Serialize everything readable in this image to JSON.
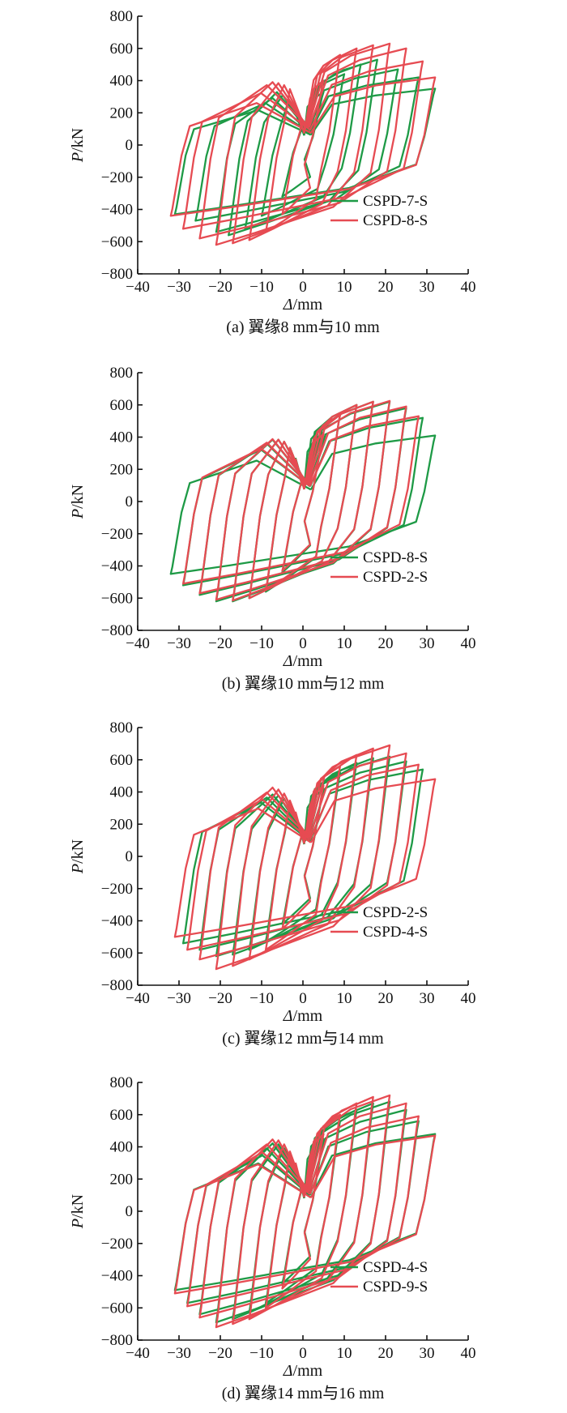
{
  "colors": {
    "green": "#1e9a46",
    "red": "#e64b52"
  },
  "chart_data": [
    {
      "type": "line",
      "xlabel": "Δ/mm",
      "ylabel": "P/kN",
      "xlim": [
        -40,
        40
      ],
      "ylim": [
        -800,
        800
      ],
      "xticks": [
        "−40",
        "−30",
        "−20",
        "−10",
        "0",
        "10",
        "20",
        "30",
        "40"
      ],
      "yticks": [
        "800",
        "600",
        "400",
        "200",
        "0",
        "−200",
        "−400",
        "−600",
        "−800"
      ],
      "caption": "(a) 翼缘8 mm与10 mm",
      "series": [
        {
          "name": "CSPD-7-S",
          "color": "green",
          "peaks_pos": [
            [
              5,
              330
            ],
            [
              10,
              440
            ],
            [
              14,
              500
            ],
            [
              18,
              530
            ],
            [
              23,
              470
            ],
            [
              28,
              420
            ],
            [
              32,
              350
            ]
          ],
          "peaks_neg": [
            [
              -5,
              -320
            ],
            [
              -10,
              -440
            ],
            [
              -14,
              -520
            ],
            [
              -18,
              -560
            ],
            [
              -21,
              -540
            ],
            [
              -26,
              -470
            ],
            [
              -31,
              -430
            ]
          ]
        },
        {
          "name": "CSPD-8-S",
          "color": "red",
          "peaks_pos": [
            [
              5,
              400
            ],
            [
              9,
              560
            ],
            [
              13,
              600
            ],
            [
              17,
              620
            ],
            [
              21,
              630
            ],
            [
              25,
              600
            ],
            [
              29,
              520
            ],
            [
              32,
              420
            ]
          ],
          "peaks_neg": [
            [
              -5,
              -430
            ],
            [
              -9,
              -540
            ],
            [
              -13,
              -590
            ],
            [
              -17,
              -610
            ],
            [
              -21,
              -620
            ],
            [
              -25,
              -580
            ],
            [
              -29,
              -520
            ],
            [
              -32,
              -440
            ]
          ]
        }
      ]
    },
    {
      "type": "line",
      "xlabel": "Δ/mm",
      "ylabel": "P/kN",
      "xlim": [
        -40,
        40
      ],
      "ylim": [
        -800,
        800
      ],
      "xticks": [
        "−40",
        "−30",
        "−20",
        "−10",
        "0",
        "10",
        "20",
        "30",
        "40"
      ],
      "yticks": [
        "800",
        "600",
        "400",
        "200",
        "0",
        "−200",
        "−400",
        "−600",
        "−800"
      ],
      "caption": "(b) 翼缘10 mm与12 mm",
      "series": [
        {
          "name": "CSPD-8-S",
          "color": "green",
          "peaks_pos": [
            [
              5,
              430
            ],
            [
              9,
              540
            ],
            [
              13,
              600
            ],
            [
              17,
              620
            ],
            [
              21,
              620
            ],
            [
              25,
              580
            ],
            [
              29,
              520
            ],
            [
              32,
              410
            ]
          ],
          "peaks_neg": [
            [
              -5,
              -440
            ],
            [
              -9,
              -560
            ],
            [
              -13,
              -600
            ],
            [
              -17,
              -620
            ],
            [
              -21,
              -620
            ],
            [
              -25,
              -580
            ],
            [
              -29,
              -520
            ],
            [
              -32,
              -450
            ]
          ]
        },
        {
          "name": "CSPD-2-S",
          "color": "red",
          "peaks_pos": [
            [
              5,
              420
            ],
            [
              9,
              540
            ],
            [
              13,
              600
            ],
            [
              17,
              620
            ],
            [
              21,
              625
            ],
            [
              25,
              590
            ],
            [
              28,
              530
            ]
          ],
          "peaks_neg": [
            [
              -5,
              -430
            ],
            [
              -9,
              -550
            ],
            [
              -13,
              -600
            ],
            [
              -17,
              -615
            ],
            [
              -21,
              -610
            ],
            [
              -25,
              -570
            ],
            [
              -29,
              -510
            ]
          ]
        }
      ]
    },
    {
      "type": "line",
      "xlabel": "Δ/mm",
      "ylabel": "P/kN",
      "xlim": [
        -40,
        40
      ],
      "ylim": [
        -800,
        800
      ],
      "xticks": [
        "−40",
        "−30",
        "−20",
        "−10",
        "0",
        "10",
        "20",
        "30",
        "40"
      ],
      "yticks": [
        "800",
        "600",
        "400",
        "200",
        "0",
        "−200",
        "−400",
        "−600",
        "−800"
      ],
      "caption": "(c) 翼缘12 mm与14 mm",
      "series": [
        {
          "name": "CSPD-2-S",
          "color": "green",
          "peaks_pos": [
            [
              5,
              420
            ],
            [
              9,
              520
            ],
            [
              13,
              580
            ],
            [
              17,
              610
            ],
            [
              21,
              620
            ],
            [
              25,
              590
            ],
            [
              29,
              540
            ]
          ],
          "peaks_neg": [
            [
              -5,
              -420
            ],
            [
              -9,
              -530
            ],
            [
              -13,
              -580
            ],
            [
              -17,
              -610
            ],
            [
              -21,
              -620
            ],
            [
              -25,
              -580
            ],
            [
              -29,
              -540
            ]
          ]
        },
        {
          "name": "CSPD-4-S",
          "color": "red",
          "peaks_pos": [
            [
              5,
              440
            ],
            [
              9,
              560
            ],
            [
              13,
              630
            ],
            [
              17,
              670
            ],
            [
              21,
              690
            ],
            [
              25,
              640
            ],
            [
              28,
              570
            ],
            [
              32,
              480
            ]
          ],
          "peaks_neg": [
            [
              -5,
              -450
            ],
            [
              -9,
              -580
            ],
            [
              -13,
              -640
            ],
            [
              -17,
              -680
            ],
            [
              -21,
              -700
            ],
            [
              -25,
              -640
            ],
            [
              -28,
              -580
            ],
            [
              -31,
              -500
            ]
          ]
        }
      ]
    },
    {
      "type": "line",
      "xlabel": "Δ/mm",
      "ylabel": "P/kN",
      "xlim": [
        -40,
        40
      ],
      "ylim": [
        -800,
        800
      ],
      "xticks": [
        "−40",
        "−30",
        "−20",
        "−10",
        "0",
        "10",
        "20",
        "30",
        "40"
      ],
      "yticks": [
        "800",
        "600",
        "400",
        "200",
        "0",
        "−200",
        "−400",
        "−600",
        "−800"
      ],
      "caption": "(d) 翼缘14 mm与16 mm",
      "series": [
        {
          "name": "CSPD-4-S",
          "color": "green",
          "peaks_pos": [
            [
              5,
              450
            ],
            [
              9,
              560
            ],
            [
              13,
              630
            ],
            [
              17,
              670
            ],
            [
              21,
              680
            ],
            [
              25,
              630
            ],
            [
              28,
              560
            ],
            [
              32,
              480
            ]
          ],
          "peaks_neg": [
            [
              -5,
              -450
            ],
            [
              -9,
              -570
            ],
            [
              -13,
              -630
            ],
            [
              -17,
              -670
            ],
            [
              -21,
              -690
            ],
            [
              -25,
              -640
            ],
            [
              -28,
              -570
            ],
            [
              -31,
              -490
            ]
          ]
        },
        {
          "name": "CSPD-9-S",
          "color": "red",
          "peaks_pos": [
            [
              5,
              480
            ],
            [
              9,
              600
            ],
            [
              13,
              670
            ],
            [
              17,
              710
            ],
            [
              21,
              720
            ],
            [
              25,
              670
            ],
            [
              28,
              590
            ],
            [
              32,
              470
            ]
          ],
          "peaks_neg": [
            [
              -5,
              -480
            ],
            [
              -9,
              -600
            ],
            [
              -13,
              -670
            ],
            [
              -17,
              -700
            ],
            [
              -21,
              -720
            ],
            [
              -25,
              -660
            ],
            [
              -28,
              -590
            ],
            [
              -31,
              -510
            ]
          ]
        }
      ]
    }
  ]
}
